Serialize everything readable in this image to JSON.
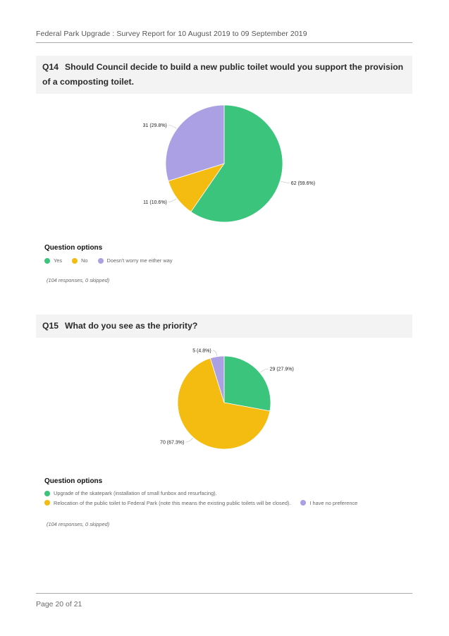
{
  "header": {
    "title": "Federal Park Upgrade : Survey Report for 10 August 2019 to 09 September 2019"
  },
  "q14": {
    "number": "Q14",
    "question": "Should Council decide to build a new public toilet would you support the provision of a composting toilet.",
    "options_title": "Question options",
    "legend": [
      {
        "label": "Yes",
        "color": "#3bc47c"
      },
      {
        "label": "No",
        "color": "#f4bb10"
      },
      {
        "label": "Doesn't worry me either way",
        "color": "#aba0e3"
      }
    ],
    "responses": "(104 responses, 0 skipped)"
  },
  "q15": {
    "number": "Q15",
    "question": "What do you see as the priority?",
    "options_title": "Question options",
    "legend": [
      {
        "label": "Upgrade of the skatepark (installation of small funbox and resurfacing).",
        "color": "#3bc47c"
      },
      {
        "label": "Relocation of the public toilet to Federal Park (note this means the existing public toilets will be closed).",
        "color": "#f4bb10"
      },
      {
        "label": "I have no preference",
        "color": "#aba0e3"
      }
    ],
    "responses": "(104 responses, 0 skipped)"
  },
  "footer": {
    "page": "Page 20 of 21"
  },
  "chart_data": [
    {
      "type": "pie",
      "labels": [
        "Yes",
        "No",
        "Doesn't worry me either way"
      ],
      "values": [
        62,
        11,
        31
      ],
      "value_labels": [
        "62 (59.6%)",
        "11 (10.6%)",
        "31 (29.8%)"
      ],
      "colors": [
        "#3bc47c",
        "#f4bb10",
        "#aba0e3"
      ]
    },
    {
      "type": "pie",
      "labels": [
        "Upgrade of the skatepark (installation of small funbox and resurfacing).",
        "Relocation of the public toilet to Federal Park (note this means the existing public toilets will be closed).",
        "I have no preference"
      ],
      "values": [
        29,
        70,
        5
      ],
      "value_labels": [
        "29 (27.9%)",
        "70 (67.3%)",
        "5 (4.8%)"
      ],
      "colors": [
        "#3bc47c",
        "#f4bb10",
        "#aba0e3"
      ]
    }
  ]
}
